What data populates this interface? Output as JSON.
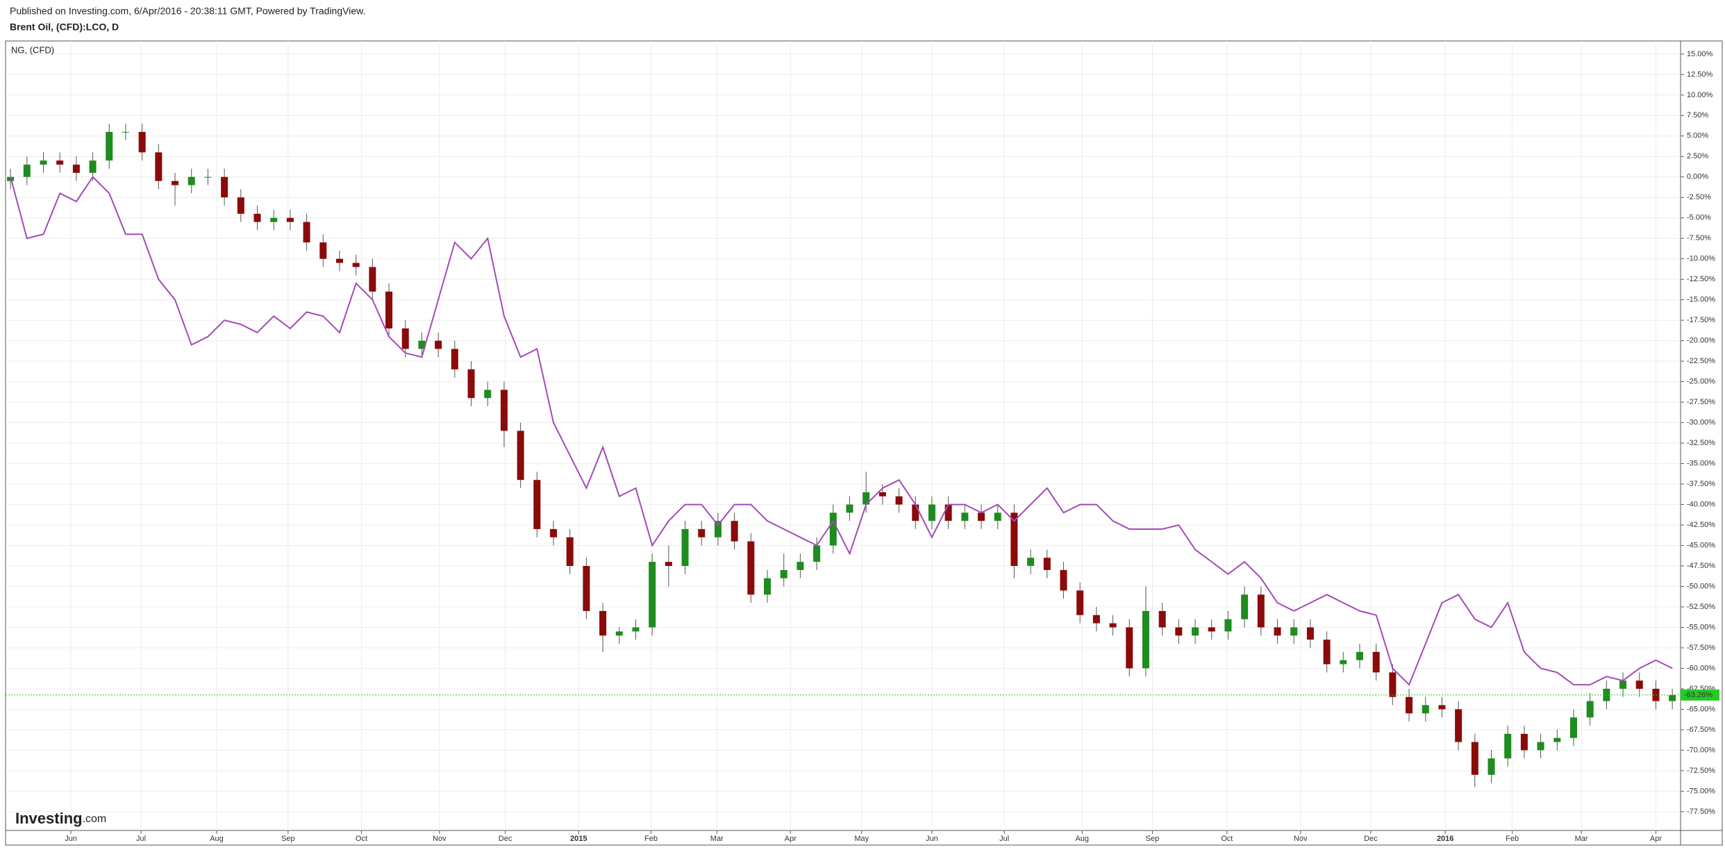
{
  "chart_data": {
    "type": "candlestick",
    "subtitle": "Published on Investing.com, 6/Apr/2016 - 20:38:11 GMT, Powered by TradingView.",
    "title": "Brent Oil, (CFD):LCO, D",
    "watermark": {
      "brand": "Investing",
      "suffix": ".com"
    },
    "grid": true,
    "xlim": [
      -0.3,
      101.5
    ],
    "ylim": [
      -79.8,
      16.6
    ],
    "xticks": [
      {
        "value": 3.67,
        "label": "Jun"
      },
      {
        "value": 7.93,
        "label": "Jul"
      },
      {
        "value": 12.53,
        "label": "Aug"
      },
      {
        "value": 16.87,
        "label": "Sep"
      },
      {
        "value": 21.33,
        "label": "Oct"
      },
      {
        "value": 26.07,
        "label": "Nov"
      },
      {
        "value": 30.07,
        "label": "Dec"
      },
      {
        "value": 34.53,
        "label": "2015"
      },
      {
        "value": 38.93,
        "label": "Feb"
      },
      {
        "value": 42.93,
        "label": "Mar"
      },
      {
        "value": 47.4,
        "label": "Apr"
      },
      {
        "value": 51.73,
        "label": "May"
      },
      {
        "value": 56,
        "label": "Jun"
      },
      {
        "value": 60.4,
        "label": "Jul"
      },
      {
        "value": 65.13,
        "label": "Aug"
      },
      {
        "value": 69.4,
        "label": "Sep"
      },
      {
        "value": 73.93,
        "label": "Oct"
      },
      {
        "value": 78.4,
        "label": "Nov"
      },
      {
        "value": 82.67,
        "label": "Dec"
      },
      {
        "value": 87.2,
        "label": "2016"
      },
      {
        "value": 91.27,
        "label": "Feb"
      },
      {
        "value": 95.47,
        "label": "Mar"
      },
      {
        "value": 100,
        "label": "Apr"
      }
    ],
    "yticks": [
      {
        "value": 15,
        "label": "15.00%"
      },
      {
        "value": 12.5,
        "label": "12.50%"
      },
      {
        "value": 10,
        "label": "10.00%"
      },
      {
        "value": 7.5,
        "label": "7.50%"
      },
      {
        "value": 5,
        "label": "5.00%"
      },
      {
        "value": 2.5,
        "label": "2.50%"
      },
      {
        "value": 0,
        "label": "0.00%"
      },
      {
        "value": -2.5,
        "label": "-2.50%"
      },
      {
        "value": -5,
        "label": "-5.00%"
      },
      {
        "value": -7.5,
        "label": "-7.50%"
      },
      {
        "value": -10,
        "label": "-10.00%"
      },
      {
        "value": -12.5,
        "label": "-12.50%"
      },
      {
        "value": -15,
        "label": "-15.00%"
      },
      {
        "value": -17.5,
        "label": "-17.50%"
      },
      {
        "value": -20,
        "label": "-20.00%"
      },
      {
        "value": -22.5,
        "label": "-22.50%"
      },
      {
        "value": -25,
        "label": "-25.00%"
      },
      {
        "value": -27.5,
        "label": "-27.50%"
      },
      {
        "value": -30,
        "label": "-30.00%"
      },
      {
        "value": -32.5,
        "label": "-32.50%"
      },
      {
        "value": -35,
        "label": "-35.00%"
      },
      {
        "value": -37.5,
        "label": "-37.50%"
      },
      {
        "value": -40,
        "label": "-40.00%"
      },
      {
        "value": -42.5,
        "label": "-42.50%"
      },
      {
        "value": -45,
        "label": "-45.00%"
      },
      {
        "value": -47.5,
        "label": "-47.50%"
      },
      {
        "value": -50,
        "label": "-50.00%"
      },
      {
        "value": -52.5,
        "label": "-52.50%"
      },
      {
        "value": -55,
        "label": "-55.00%"
      },
      {
        "value": -57.5,
        "label": "-57.50%"
      },
      {
        "value": -60,
        "label": "-60.00%"
      },
      {
        "value": -62.5,
        "label": "-62.50%"
      },
      {
        "value": -65,
        "label": "-65.00%"
      },
      {
        "value": -67.5,
        "label": "-67.50%"
      },
      {
        "value": -70,
        "label": "-70.00%"
      },
      {
        "value": -72.5,
        "label": "-72.50%"
      },
      {
        "value": -75,
        "label": "-75.00%"
      },
      {
        "value": -77.5,
        "label": "-77.50%"
      }
    ],
    "candles": {
      "up_color": "#1e8c1e",
      "down_color": "#8b0a0a",
      "last_color": "#22cc22",
      "last_label": "-63.26%",
      "open": [
        -0.5,
        0,
        1.5,
        2,
        1.5,
        0.5,
        2,
        5.5,
        5.5,
        3,
        -0.5,
        -1,
        0,
        0,
        -2.5,
        -4.5,
        -5.5,
        -5,
        -5.5,
        -8,
        -10,
        -10.5,
        -11,
        -14,
        -18.5,
        -21,
        -20,
        -21,
        -23.5,
        -27,
        -26,
        -31,
        -37,
        -43,
        -44,
        -47.5,
        -53,
        -56,
        -55.5,
        -55,
        -47,
        -47.5,
        -43,
        -44,
        -42,
        -44.5,
        -51,
        -49,
        -48,
        -47,
        -45,
        -41,
        -40,
        -38.5,
        -39,
        -40,
        -42,
        -40,
        -42,
        -41,
        -42,
        -41,
        -47.5,
        -46.5,
        -48,
        -50.5,
        -53.5,
        -54.5,
        -55,
        -60,
        -53,
        -55,
        -56,
        -55,
        -55.5,
        -54,
        -51,
        -55,
        -56,
        -55,
        -56.5,
        -59.5,
        -59,
        -58,
        -60.5,
        -63.5,
        -65.5,
        -64.5,
        -65,
        -69,
        -73,
        -71,
        -68,
        -70,
        -69,
        -68.5,
        -66,
        -64,
        -62.5,
        -61.5,
        -62.5,
        -64
      ],
      "high": [
        1,
        2.5,
        3,
        3,
        2.5,
        3,
        6.5,
        6.5,
        6.5,
        4,
        0.5,
        1,
        1,
        1,
        -1.5,
        -3.5,
        -4,
        -4,
        -4.5,
        -7,
        -9,
        -9.5,
        -10,
        -13,
        -17.5,
        -19,
        -19,
        -20,
        -22.5,
        -25,
        -25,
        -30,
        -36,
        -42,
        -43,
        -46.5,
        -52,
        -55,
        -54,
        -46,
        -45,
        -42,
        -42,
        -41,
        -41,
        -43.5,
        -48,
        -46,
        -46,
        -44,
        -40,
        -39,
        -36,
        -37.5,
        -38,
        -39,
        -39,
        -39,
        -40,
        -40,
        -40,
        -40,
        -45.5,
        -45.5,
        -47,
        -49.5,
        -52.5,
        -53.5,
        -54,
        -50,
        -52,
        -54,
        -54,
        -54,
        -53,
        -50,
        -50,
        -54,
        -54,
        -54,
        -55.5,
        -58,
        -57,
        -57,
        -59.5,
        -62.5,
        -63.5,
        -63.5,
        -64,
        -68,
        -70,
        -67,
        -67,
        -68,
        -67.5,
        -65,
        -63,
        -61.5,
        -60.5,
        -60.5,
        -61.5,
        -62.5
      ],
      "low": [
        -1.5,
        -1,
        0.5,
        0.5,
        -0.5,
        -0.5,
        1,
        4.5,
        2,
        -1.5,
        -3.5,
        -2,
        -1,
        -3.5,
        -5.5,
        -6.5,
        -6.5,
        -6.5,
        -9,
        -11,
        -11.5,
        -12,
        -15,
        -19.5,
        -22,
        -22,
        -22,
        -24.5,
        -28,
        -28,
        -33,
        -38,
        -44,
        -45,
        -48.5,
        -54,
        -58,
        -57,
        -56.5,
        -56,
        -50,
        -48.5,
        -45,
        -45,
        -45.5,
        -52,
        -52,
        -50,
        -49,
        -48,
        -46,
        -42,
        -41,
        -40,
        -41,
        -43,
        -43,
        -43,
        -43,
        -43,
        -43,
        -49,
        -48.5,
        -49,
        -51.5,
        -54.5,
        -55.5,
        -56,
        -61,
        -61,
        -56,
        -57,
        -57,
        -56.5,
        -56.5,
        -55,
        -56,
        -57,
        -57,
        -57.5,
        -60.5,
        -60.5,
        -60,
        -61.5,
        -64.5,
        -66.5,
        -66.5,
        -66,
        -70,
        -74.5,
        -74,
        -72,
        -71,
        -71,
        -70,
        -69.5,
        -67,
        -65,
        -63.5,
        -63.5,
        -65,
        -65
      ],
      "close": [
        0,
        1.5,
        2,
        1.5,
        0.5,
        2,
        5.5,
        5.5,
        3,
        -0.5,
        -1,
        0,
        0,
        -2.5,
        -4.5,
        -5.5,
        -5,
        -5.5,
        -8,
        -10,
        -10.5,
        -11,
        -14,
        -18.5,
        -21,
        -20,
        -21,
        -23.5,
        -27,
        -26,
        -31,
        -37,
        -43,
        -44,
        -47.5,
        -53,
        -56,
        -55.5,
        -55,
        -47,
        -47.5,
        -43,
        -44,
        -42,
        -44.5,
        -51,
        -49,
        -48,
        -47,
        -45,
        -41,
        -40,
        -38.5,
        -39,
        -40,
        -42,
        -40,
        -42,
        -41,
        -42,
        -41,
        -47.5,
        -46.5,
        -48,
        -50.5,
        -53.5,
        -54.5,
        -55,
        -60,
        -53,
        -55,
        -56,
        -55,
        -55.5,
        -54,
        -51,
        -55,
        -56,
        -55,
        -56.5,
        -59.5,
        -59,
        -58,
        -60.5,
        -63.5,
        -65.5,
        -64.5,
        -65,
        -69,
        -73,
        -71,
        -68,
        -70,
        -69,
        -68.5,
        -66,
        -64,
        -62.5,
        -61.5,
        -62.5,
        -64,
        -63.26
      ]
    },
    "series": [
      {
        "name": "NG,  (CFD)",
        "color": "#a24bb5",
        "values": [
          0,
          -7.5,
          -7,
          -2,
          -3,
          0,
          -2,
          -7,
          -7,
          -12.5,
          -15,
          -20.5,
          -19.5,
          -17.5,
          -18,
          -19,
          -17,
          -18.5,
          -16.5,
          -17,
          -19,
          -13,
          -15,
          -19.5,
          -21.5,
          -22,
          -15,
          -8,
          -10,
          -7.5,
          -17,
          -22,
          -21,
          -30,
          -34,
          -38,
          -33,
          -39,
          -38,
          -45,
          -42,
          -40,
          -40,
          -42.5,
          -40,
          -40,
          -42,
          -43,
          -44,
          -45,
          -42,
          -46,
          -40,
          -38,
          -37,
          -40,
          -44,
          -40,
          -40,
          -41,
          -40,
          -42,
          -40,
          -38,
          -41,
          -40,
          -40,
          -42,
          -43,
          -43,
          -43,
          -42.5,
          -45.5,
          -47,
          -48.5,
          -47,
          -49,
          -52,
          -53,
          -52,
          -51,
          -52,
          -53,
          -53.5,
          -60,
          -62,
          -57,
          -52,
          -51,
          -54,
          -55,
          -52,
          -58,
          -60,
          -60.5,
          -62,
          -62,
          -61,
          -61.5,
          -60,
          -59,
          -60
        ]
      }
    ]
  }
}
